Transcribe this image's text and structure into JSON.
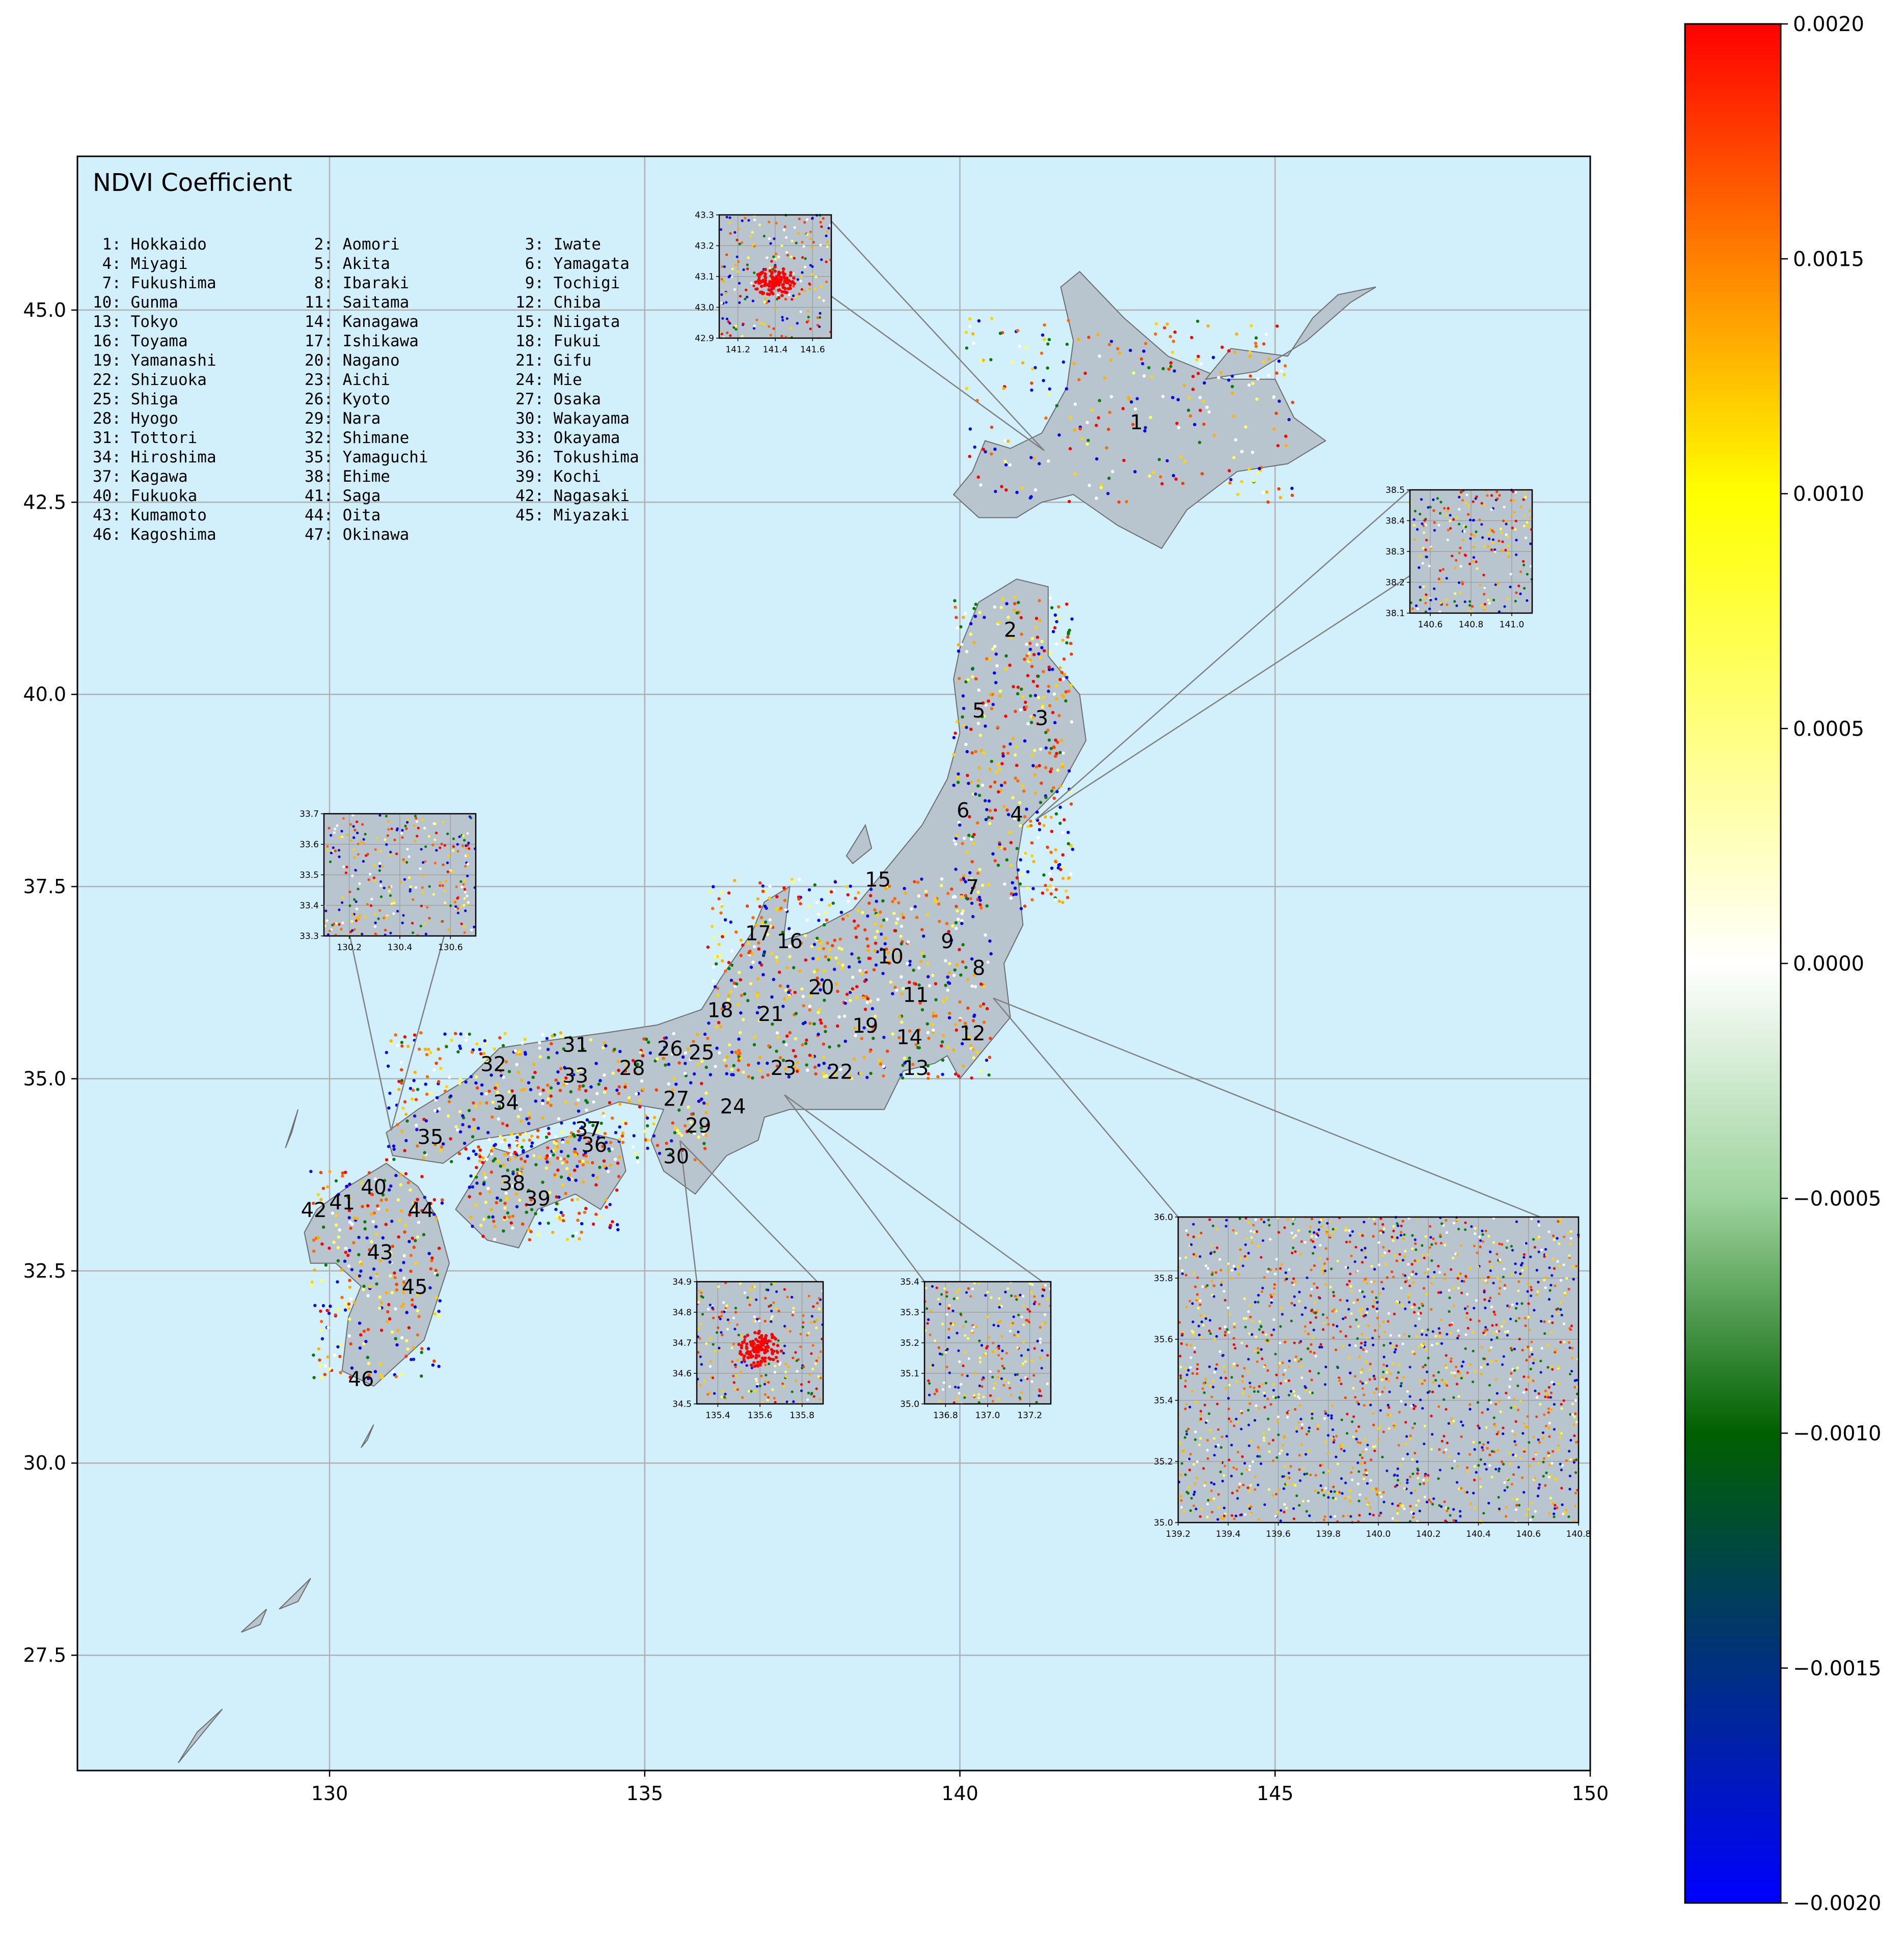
{
  "map": {
    "title": "NDVI Coefficient",
    "x_ticks": [
      "130",
      "135",
      "140",
      "145",
      "150"
    ],
    "y_ticks": [
      "27.5",
      "30.0",
      "32.5",
      "35.0",
      "37.5",
      "40.0",
      "42.5",
      "45.0"
    ],
    "lon_range": [
      126,
      150
    ],
    "lat_range": [
      26,
      47
    ],
    "ocean_color": "#d2f0fc",
    "land_color": "#b9c5ce",
    "border_color": "#6e6e6e"
  },
  "legend": [
    [
      "1: Hokkaido",
      "2: Aomori",
      "3: Iwate"
    ],
    [
      "4: Miyagi",
      "5: Akita",
      "6: Yamagata"
    ],
    [
      "7: Fukushima",
      "8: Ibaraki",
      "9: Tochigi"
    ],
    [
      "10: Gunma",
      "11: Saitama",
      "12: Chiba"
    ],
    [
      "13: Tokyo",
      "14: Kanagawa",
      "15: Niigata"
    ],
    [
      "16: Toyama",
      "17: Ishikawa",
      "18: Fukui"
    ],
    [
      "19: Yamanashi",
      "20: Nagano",
      "21: Gifu"
    ],
    [
      "22: Shizuoka",
      "23: Aichi",
      "24: Mie"
    ],
    [
      "25: Shiga",
      "26: Kyoto",
      "27: Osaka"
    ],
    [
      "28: Hyogo",
      "29: Nara",
      "30: Wakayama"
    ],
    [
      "31: Tottori",
      "32: Shimane",
      "33: Okayama"
    ],
    [
      "34: Hiroshima",
      "35: Yamaguchi",
      "36: Tokushima"
    ],
    [
      "37: Kagawa",
      "38: Ehime",
      "39: Kochi"
    ],
    [
      "40: Fukuoka",
      "41: Saga",
      "42: Nagasaki"
    ],
    [
      "43: Kumamoto",
      "44: Oita",
      "45: Miyazaki"
    ],
    [
      "46: Kagoshima",
      "47: Okinawa",
      ""
    ]
  ],
  "prefecture_labels": [
    {
      "n": "1",
      "lon": 142.8,
      "lat": 43.45
    },
    {
      "n": "2",
      "lon": 140.8,
      "lat": 40.75
    },
    {
      "n": "3",
      "lon": 141.3,
      "lat": 39.6
    },
    {
      "n": "4",
      "lon": 140.9,
      "lat": 38.35
    },
    {
      "n": "5",
      "lon": 140.3,
      "lat": 39.7
    },
    {
      "n": "6",
      "lon": 140.05,
      "lat": 38.4
    },
    {
      "n": "7",
      "lon": 140.2,
      "lat": 37.4
    },
    {
      "n": "8",
      "lon": 140.3,
      "lat": 36.35
    },
    {
      "n": "9",
      "lon": 139.8,
      "lat": 36.7
    },
    {
      "n": "10",
      "lon": 138.9,
      "lat": 36.5
    },
    {
      "n": "11",
      "lon": 139.3,
      "lat": 36.0
    },
    {
      "n": "12",
      "lon": 140.2,
      "lat": 35.5
    },
    {
      "n": "13",
      "lon": 139.3,
      "lat": 35.05
    },
    {
      "n": "14",
      "lon": 139.2,
      "lat": 35.45
    },
    {
      "n": "15",
      "lon": 138.7,
      "lat": 37.5
    },
    {
      "n": "16",
      "lon": 137.3,
      "lat": 36.7
    },
    {
      "n": "17",
      "lon": 136.8,
      "lat": 36.8
    },
    {
      "n": "18",
      "lon": 136.2,
      "lat": 35.8
    },
    {
      "n": "19",
      "lon": 138.5,
      "lat": 35.6
    },
    {
      "n": "20",
      "lon": 137.8,
      "lat": 36.1
    },
    {
      "n": "21",
      "lon": 137.0,
      "lat": 35.75
    },
    {
      "n": "22",
      "lon": 138.1,
      "lat": 35.0
    },
    {
      "n": "23",
      "lon": 137.2,
      "lat": 35.05
    },
    {
      "n": "24",
      "lon": 136.4,
      "lat": 34.55
    },
    {
      "n": "25",
      "lon": 135.9,
      "lat": 35.25
    },
    {
      "n": "26",
      "lon": 135.4,
      "lat": 35.3
    },
    {
      "n": "27",
      "lon": 135.5,
      "lat": 34.65
    },
    {
      "n": "28",
      "lon": 134.8,
      "lat": 35.05
    },
    {
      "n": "29",
      "lon": 135.85,
      "lat": 34.3
    },
    {
      "n": "30",
      "lon": 135.5,
      "lat": 33.9
    },
    {
      "n": "31",
      "lon": 133.9,
      "lat": 35.35
    },
    {
      "n": "32",
      "lon": 132.6,
      "lat": 35.1
    },
    {
      "n": "33",
      "lon": 133.9,
      "lat": 34.95
    },
    {
      "n": "34",
      "lon": 132.8,
      "lat": 34.6
    },
    {
      "n": "35",
      "lon": 131.6,
      "lat": 34.15
    },
    {
      "n": "36",
      "lon": 134.2,
      "lat": 34.05
    },
    {
      "n": "37",
      "lon": 134.1,
      "lat": 34.25
    },
    {
      "n": "38",
      "lon": 132.9,
      "lat": 33.55
    },
    {
      "n": "39",
      "lon": 133.3,
      "lat": 33.35
    },
    {
      "n": "40",
      "lon": 130.7,
      "lat": 33.5
    },
    {
      "n": "41",
      "lon": 130.2,
      "lat": 33.3
    },
    {
      "n": "42",
      "lon": 129.75,
      "lat": 33.2
    },
    {
      "n": "43",
      "lon": 130.8,
      "lat": 32.65
    },
    {
      "n": "44",
      "lon": 131.45,
      "lat": 33.2
    },
    {
      "n": "45",
      "lon": 131.35,
      "lat": 32.2
    },
    {
      "n": "46",
      "lon": 130.5,
      "lat": 31.0
    }
  ],
  "insets": [
    {
      "name": "sapporo",
      "x_ticks": [
        "141.2",
        "141.4",
        "141.6"
      ],
      "y_ticks": [
        "42.9",
        "43.0",
        "43.1",
        "43.2",
        "43.3"
      ]
    },
    {
      "name": "sendai",
      "x_ticks": [
        "140.6",
        "140.8",
        "141.0"
      ],
      "y_ticks": [
        "38.1",
        "38.2",
        "38.3",
        "38.4",
        "38.5"
      ]
    },
    {
      "name": "fukuoka",
      "x_ticks": [
        "130.2",
        "130.4",
        "130.6"
      ],
      "y_ticks": [
        "33.3",
        "33.4",
        "33.5",
        "33.6",
        "33.7"
      ]
    },
    {
      "name": "osaka",
      "x_ticks": [
        "135.4",
        "135.6",
        "135.8"
      ],
      "y_ticks": [
        "34.5",
        "34.6",
        "34.7",
        "34.8",
        "34.9"
      ]
    },
    {
      "name": "nagoya",
      "x_ticks": [
        "136.8",
        "137.0",
        "137.2"
      ],
      "y_ticks": [
        "35.0",
        "35.1",
        "35.2",
        "35.3",
        "35.4"
      ]
    },
    {
      "name": "tokyo",
      "x_ticks": [
        "139.2",
        "139.4",
        "139.6",
        "139.8",
        "140.0",
        "140.2",
        "140.4",
        "140.6",
        "140.8"
      ],
      "y_ticks": [
        "35.0",
        "35.2",
        "35.4",
        "35.6",
        "35.8",
        "36.0"
      ]
    }
  ],
  "colorbar": {
    "ticks": [
      "0.0020",
      "0.0015",
      "0.0010",
      "0.0005",
      "0.0000",
      "−0.0005",
      "−0.0010",
      "−0.0015",
      "−0.0020"
    ],
    "stops": [
      "#0000ff",
      "#003080",
      "#006000",
      "#9dd39d",
      "#ffffff",
      "#ffff80",
      "#ffff00",
      "#ff8000",
      "#ff0000"
    ]
  }
}
